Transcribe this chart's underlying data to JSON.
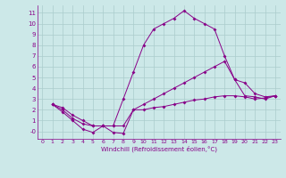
{
  "xlabel": "Windchill (Refroidissement éolien,°C)",
  "line_color": "#880088",
  "background_color": "#cce8e8",
  "grid_color": "#aacccc",
  "xlim": [
    -0.5,
    23.5
  ],
  "ylim": [
    -0.7,
    11.7
  ],
  "xticks": [
    0,
    1,
    2,
    3,
    4,
    5,
    6,
    7,
    8,
    9,
    10,
    11,
    12,
    13,
    14,
    15,
    16,
    17,
    18,
    19,
    20,
    21,
    22,
    23
  ],
  "yticks": [
    0,
    1,
    2,
    3,
    4,
    5,
    6,
    7,
    8,
    9,
    10,
    11
  ],
  "ytick_labels": [
    "-0",
    "1",
    "2",
    "3",
    "4",
    "5",
    "6",
    "7",
    "8",
    "9",
    "10",
    "11"
  ],
  "series": {
    "main": {
      "x": [
        1,
        2,
        3,
        4,
        5,
        6,
        7,
        8,
        9,
        10,
        11,
        12,
        13,
        14,
        15,
        16,
        17,
        18,
        19,
        20,
        21,
        22,
        23
      ],
      "y": [
        2.5,
        2.0,
        1.2,
        0.7,
        0.5,
        0.5,
        0.5,
        3.0,
        5.5,
        8.0,
        9.5,
        10.0,
        10.5,
        11.2,
        10.5,
        10.0,
        9.5,
        7.0,
        4.8,
        3.3,
        3.2,
        3.0,
        3.3
      ]
    },
    "lower": {
      "x": [
        1,
        2,
        3,
        4,
        5,
        6,
        7,
        8,
        9,
        10,
        11,
        12,
        13,
        14,
        15,
        16,
        17,
        18,
        19,
        20,
        21,
        22,
        23
      ],
      "y": [
        2.5,
        1.8,
        1.0,
        0.2,
        -0.1,
        0.5,
        -0.1,
        -0.2,
        2.0,
        2.0,
        2.2,
        2.3,
        2.5,
        2.7,
        2.9,
        3.0,
        3.2,
        3.3,
        3.3,
        3.2,
        3.0,
        3.1,
        3.3
      ]
    },
    "upper": {
      "x": [
        1,
        2,
        3,
        4,
        5,
        6,
        7,
        8,
        9,
        10,
        11,
        12,
        13,
        14,
        15,
        16,
        17,
        18,
        19,
        20,
        21,
        22,
        23
      ],
      "y": [
        2.5,
        2.2,
        1.5,
        1.0,
        0.5,
        0.5,
        0.5,
        0.5,
        2.0,
        2.5,
        3.0,
        3.5,
        4.0,
        4.5,
        5.0,
        5.5,
        6.0,
        6.5,
        4.8,
        4.5,
        3.5,
        3.2,
        3.3
      ]
    }
  }
}
